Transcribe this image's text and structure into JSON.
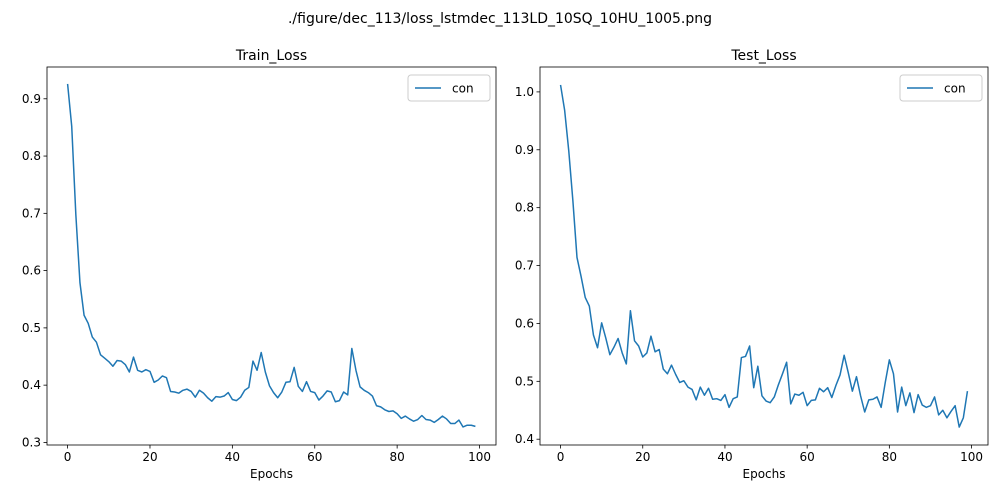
{
  "suptitle": "./figure/dec_113/loss_lstmdec_113LD_10SQ_10HU_1005.png",
  "colors": {
    "line": "#1f77b4",
    "axis": "#000000",
    "legend_border": "#cccccc"
  },
  "chart_data": [
    {
      "type": "line",
      "title": "Train_Loss",
      "xlabel": "Epochs",
      "ylabel": "",
      "xlim": [
        -5,
        104
      ],
      "ylim": [
        0.2955,
        0.9555
      ],
      "xticks": [
        0,
        20,
        40,
        60,
        80,
        100
      ],
      "xtick_labels": [
        "0",
        "20",
        "40",
        "60",
        "80",
        "100"
      ],
      "yticks": [
        0.3,
        0.4,
        0.5,
        0.6,
        0.7,
        0.8,
        0.9
      ],
      "ytick_labels": [
        "0.3",
        "0.4",
        "0.5",
        "0.6",
        "0.7",
        "0.8",
        "0.9"
      ],
      "legend": {
        "entries": [
          "con"
        ],
        "placement": "upper right"
      },
      "series": [
        {
          "name": "con",
          "values": [
            0.926,
            0.852,
            0.698,
            0.579,
            0.522,
            0.508,
            0.484,
            0.475,
            0.453,
            0.447,
            0.441,
            0.433,
            0.443,
            0.442,
            0.436,
            0.423,
            0.449,
            0.426,
            0.423,
            0.427,
            0.424,
            0.405,
            0.409,
            0.416,
            0.413,
            0.389,
            0.388,
            0.386,
            0.391,
            0.393,
            0.389,
            0.379,
            0.391,
            0.386,
            0.378,
            0.372,
            0.38,
            0.379,
            0.381,
            0.387,
            0.375,
            0.373,
            0.379,
            0.391,
            0.396,
            0.442,
            0.426,
            0.457,
            0.423,
            0.399,
            0.387,
            0.378,
            0.388,
            0.405,
            0.406,
            0.431,
            0.398,
            0.389,
            0.406,
            0.389,
            0.387,
            0.374,
            0.381,
            0.39,
            0.388,
            0.371,
            0.373,
            0.388,
            0.383,
            0.464,
            0.426,
            0.397,
            0.391,
            0.387,
            0.381,
            0.364,
            0.362,
            0.357,
            0.354,
            0.355,
            0.35,
            0.342,
            0.346,
            0.341,
            0.337,
            0.34,
            0.347,
            0.34,
            0.339,
            0.335,
            0.34,
            0.346,
            0.341,
            0.333,
            0.333,
            0.339,
            0.327,
            0.33,
            0.33,
            0.328
          ]
        }
      ]
    },
    {
      "type": "line",
      "title": "Test_Loss",
      "xlabel": "Epochs",
      "ylabel": "",
      "xlim": [
        -5,
        104
      ],
      "ylim": [
        0.39,
        1.043
      ],
      "xticks": [
        0,
        20,
        40,
        60,
        80,
        100
      ],
      "xtick_labels": [
        "0",
        "20",
        "40",
        "60",
        "80",
        "100"
      ],
      "yticks": [
        0.4,
        0.5,
        0.6,
        0.7,
        0.8,
        0.9,
        1.0
      ],
      "ytick_labels": [
        "0.4",
        "0.5",
        "0.6",
        "0.7",
        "0.8",
        "0.9",
        "1.0"
      ],
      "legend": {
        "entries": [
          "con"
        ],
        "placement": "upper right"
      },
      "series": [
        {
          "name": "con",
          "values": [
            1.012,
            0.968,
            0.898,
            0.812,
            0.714,
            0.681,
            0.645,
            0.63,
            0.58,
            0.558,
            0.601,
            0.575,
            0.546,
            0.559,
            0.574,
            0.549,
            0.53,
            0.622,
            0.57,
            0.561,
            0.542,
            0.549,
            0.578,
            0.551,
            0.555,
            0.521,
            0.513,
            0.528,
            0.512,
            0.498,
            0.501,
            0.49,
            0.486,
            0.468,
            0.49,
            0.476,
            0.488,
            0.469,
            0.47,
            0.467,
            0.477,
            0.455,
            0.47,
            0.473,
            0.541,
            0.543,
            0.561,
            0.489,
            0.526,
            0.475,
            0.466,
            0.463,
            0.473,
            0.494,
            0.513,
            0.533,
            0.461,
            0.478,
            0.476,
            0.481,
            0.458,
            0.467,
            0.468,
            0.488,
            0.482,
            0.489,
            0.472,
            0.493,
            0.511,
            0.545,
            0.515,
            0.483,
            0.508,
            0.475,
            0.447,
            0.468,
            0.469,
            0.473,
            0.455,
            0.498,
            0.537,
            0.513,
            0.447,
            0.49,
            0.458,
            0.48,
            0.446,
            0.477,
            0.459,
            0.455,
            0.458,
            0.473,
            0.442,
            0.45,
            0.437,
            0.448,
            0.458,
            0.421,
            0.437,
            0.483
          ]
        }
      ]
    }
  ]
}
